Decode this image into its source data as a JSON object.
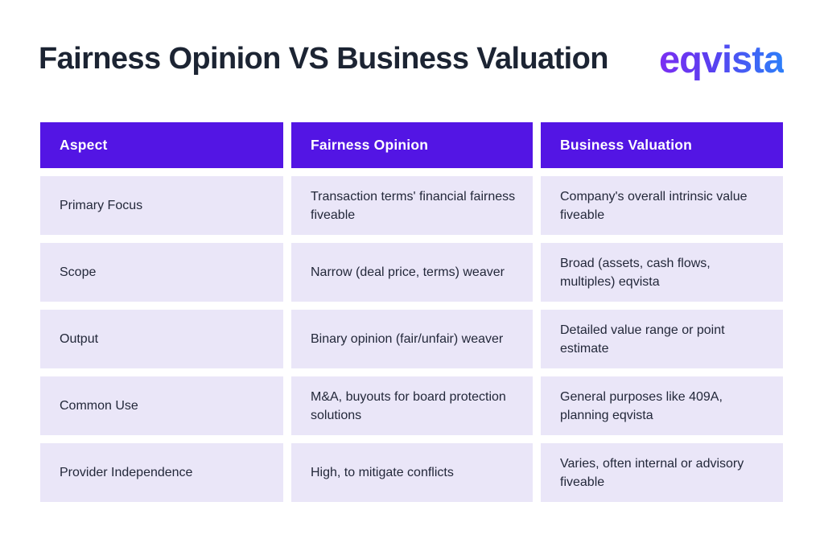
{
  "header": {
    "title": "Fairness Opinion VS Business Valuation",
    "logo_text": "eqvista"
  },
  "colors": {
    "page_background": "#ffffff",
    "title_text": "#1c2433",
    "table_header_bg": "#5315e4",
    "table_header_text": "#ffffff",
    "table_row_bg": "#eae6f8",
    "table_cell_text": "#23283a",
    "logo_gradient_start": "#7b2ff2",
    "logo_gradient_end": "#2d7ff9"
  },
  "chart_data": {
    "type": "table",
    "title": "Fairness Opinion VS Business Valuation",
    "columns": [
      "Aspect",
      "Fairness Opinion",
      "Business Valuation"
    ],
    "rows": [
      [
        "Primary Focus",
        "Transaction terms' financial fairness fiveable",
        "Company's overall intrinsic value fiveable"
      ],
      [
        "Scope",
        "Narrow (deal price, terms) weaver",
        "Broad (assets, cash flows, multiples) eqvista"
      ],
      [
        "Output",
        "Binary opinion (fair/unfair) weaver",
        "Detailed value range or point estimate"
      ],
      [
        "Common Use",
        "M&A, buyouts for board protection solutions",
        "General purposes like 409A, planning eqvista"
      ],
      [
        "Provider Independence",
        "High, to mitigate conflicts",
        "Varies, often internal or advisory fiveable"
      ]
    ],
    "layout": {
      "legend": "none",
      "grid": "off",
      "header_position": "top"
    }
  }
}
